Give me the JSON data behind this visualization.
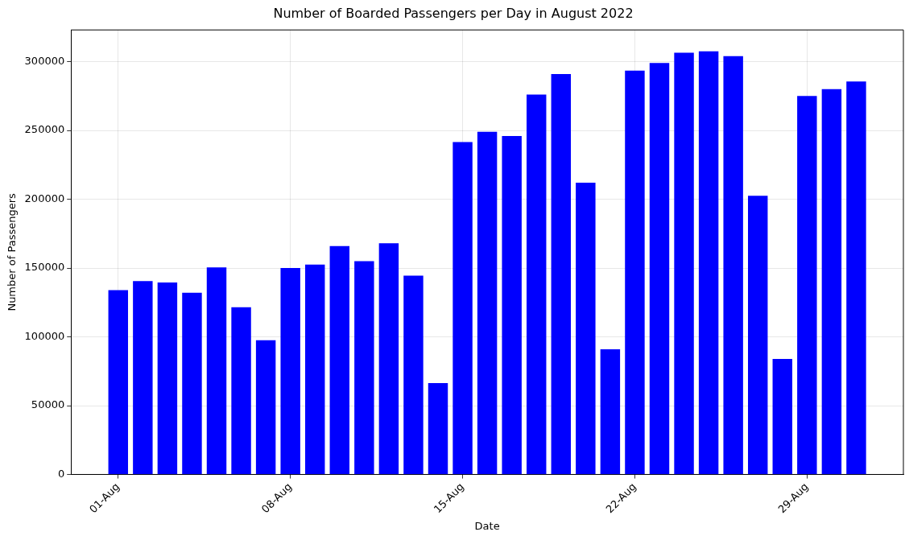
{
  "chart_data": {
    "type": "bar",
    "title": "Number of Boarded Passengers per Day in August 2022",
    "xlabel": "Date",
    "ylabel": "Number of Passengers",
    "x": [
      "2022-08-01",
      "2022-08-02",
      "2022-08-03",
      "2022-08-04",
      "2022-08-05",
      "2022-08-06",
      "2022-08-07",
      "2022-08-08",
      "2022-08-09",
      "2022-08-10",
      "2022-08-11",
      "2022-08-12",
      "2022-08-13",
      "2022-08-14",
      "2022-08-15",
      "2022-08-16",
      "2022-08-17",
      "2022-08-18",
      "2022-08-19",
      "2022-08-20",
      "2022-08-21",
      "2022-08-22",
      "2022-08-23",
      "2022-08-24",
      "2022-08-25",
      "2022-08-26",
      "2022-08-27",
      "2022-08-28",
      "2022-08-29",
      "2022-08-30",
      "2022-08-31"
    ],
    "values": [
      134000,
      140500,
      139500,
      132000,
      150500,
      121500,
      97500,
      150000,
      152500,
      166000,
      155000,
      168000,
      144500,
      66500,
      241500,
      249000,
      246000,
      276000,
      291000,
      212000,
      91000,
      293500,
      299000,
      306500,
      307500,
      304000,
      202500,
      84000,
      275000,
      280000,
      285500
    ],
    "color": "#0000ff",
    "xlim": [
      "2022-07-30T02:00",
      "2022-09-01T22:00"
    ],
    "xticks": [
      {
        "value": "2022-08-01",
        "label": "01-Aug"
      },
      {
        "value": "2022-08-08",
        "label": "08-Aug"
      },
      {
        "value": "2022-08-15",
        "label": "15-Aug"
      },
      {
        "value": "2022-08-22",
        "label": "22-Aug"
      },
      {
        "value": "2022-08-29",
        "label": "29-Aug"
      }
    ],
    "ylim": [
      0,
      323000
    ],
    "yticks": [
      0,
      50000,
      100000,
      150000,
      200000,
      250000,
      300000
    ],
    "grid": true
  }
}
